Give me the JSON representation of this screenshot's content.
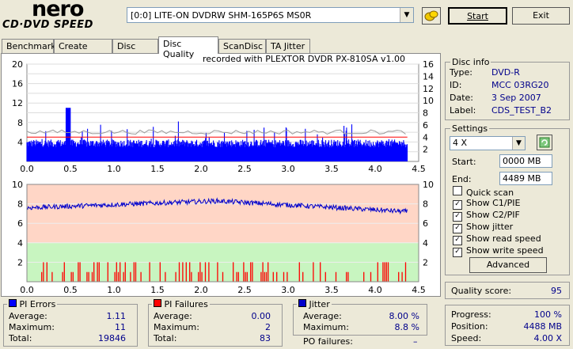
{
  "logo": {
    "line1": "nero",
    "line2": "CD·DVD SPEED"
  },
  "drive": {
    "selected": "[0:0]   LITE-ON DVDRW SHM-165P6S MS0R"
  },
  "buttons": {
    "start": "Start",
    "exit": "Exit",
    "advanced": "Advanced"
  },
  "tabs": [
    "Benchmark",
    "Create Disc",
    "Disc Info",
    "Disc Quality",
    "ScanDisc",
    "TA Jitter"
  ],
  "recorded_with": "recorded with PLEXTOR DVDR   PX-810SA  v1.00",
  "disc_info": {
    "title": "Disc info",
    "type_label": "Type:",
    "type": "DVD-R",
    "id_label": "ID:",
    "id": "MCC 03RG20",
    "date_label": "Date:",
    "date": "3 Sep 2007",
    "label_label": "Label:",
    "label": "CDS_TEST_B2"
  },
  "settings": {
    "title": "Settings",
    "speed": "4 X",
    "start_label": "Start:",
    "start_value": "0000 MB",
    "end_label": "End:",
    "end_value": "4489 MB",
    "options": [
      {
        "label": "Quick scan",
        "checked": false
      },
      {
        "label": "Show C1/PIE",
        "checked": true
      },
      {
        "label": "Show C2/PIF",
        "checked": true
      },
      {
        "label": "Show jitter",
        "checked": true
      },
      {
        "label": "Show read speed",
        "checked": true
      },
      {
        "label": "Show write speed",
        "checked": true
      }
    ]
  },
  "quality": {
    "label": "Quality score:",
    "value": "95"
  },
  "progress": {
    "progress_label": "Progress:",
    "progress": "100 %",
    "position_label": "Position:",
    "position": "4488 MB",
    "speed_label": "Speed:",
    "speed": "4.00 X"
  },
  "pi_errors": {
    "title": "PI Errors",
    "avg_label": "Average:",
    "avg": "1.11",
    "max_label": "Maximum:",
    "max": "11",
    "total_label": "Total:",
    "total": "19846"
  },
  "pi_failures": {
    "title": "PI Failures",
    "avg_label": "Average:",
    "avg": "0.00",
    "max_label": "Maximum:",
    "max": "2",
    "total_label": "Total:",
    "total": "83"
  },
  "jitter": {
    "title": "Jitter",
    "avg_label": "Average:",
    "avg": "8.00 %",
    "max_label": "Maximum:",
    "max": "8.8 %",
    "po_label": "PO failures:",
    "po": "–"
  },
  "colors": {
    "pie": "#0000ff",
    "pif": "#ff0000",
    "jitter": "#0000cc",
    "speed": "#ff0000"
  },
  "chart_data": [
    {
      "type": "bar",
      "x_ticks": [
        "0.0",
        "0.5",
        "1.0",
        "1.5",
        "2.0",
        "2.5",
        "3.0",
        "3.5",
        "4.0",
        "4.5"
      ],
      "xlim": [
        0,
        4.5
      ],
      "ylim_left": [
        0,
        20
      ],
      "y_ticks_left": [
        "2",
        "4",
        "6",
        "8",
        "10",
        "12",
        "14",
        "16",
        "18",
        "20"
      ],
      "y_ticks_left_shown": [
        "4",
        "8",
        "12",
        "16",
        "20"
      ],
      "ylim_right": [
        0,
        16
      ],
      "y_ticks_right": [
        "2",
        "4",
        "6",
        "8",
        "10",
        "12",
        "14",
        "16"
      ],
      "series": [
        {
          "name": "PI Errors",
          "baseline": 3.5,
          "max": 11
        },
        {
          "name": "Read speed",
          "start": 4.0,
          "end": 4.0
        }
      ]
    },
    {
      "type": "bar",
      "x_ticks": [
        "0.0",
        "0.5",
        "1.0",
        "1.5",
        "2.0",
        "2.5",
        "3.0",
        "3.5",
        "4.0",
        "4.5"
      ],
      "xlim": [
        0,
        4.5
      ],
      "ylim_left": [
        0,
        10
      ],
      "y_ticks_left": [
        "2",
        "4",
        "6",
        "8",
        "10"
      ],
      "ylim_right": [
        0,
        10
      ],
      "y_ticks_right": [
        "2",
        "4",
        "6",
        "8",
        "10"
      ],
      "series": [
        {
          "name": "PI Failures",
          "max": 2
        },
        {
          "name": "Jitter",
          "start": 7.6,
          "mid": 8.3,
          "end": 7.2
        }
      ]
    }
  ]
}
